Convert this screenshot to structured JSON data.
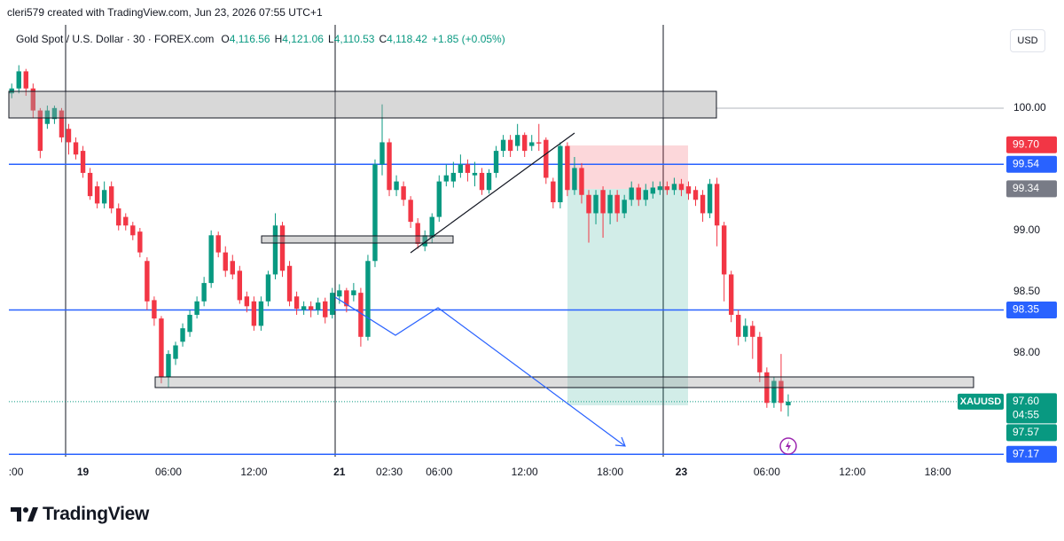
{
  "header": {
    "caption": "cleri579 created with TradingView.com, Jun 23, 2026 07:55 UTC+1"
  },
  "footer": {
    "brand": "TradingView"
  },
  "chart_data": {
    "type": "candlestick",
    "currency": "USD",
    "legend": {
      "name": "Gold Spot / U.S. Dollar · 30 · FOREX.com",
      "ohlc": [
        {
          "key": "O",
          "value": "4,116.56"
        },
        {
          "key": "H",
          "value": "4,121.06"
        },
        {
          "key": "L",
          "value": "4,110.53"
        },
        {
          "key": "C",
          "value": "4,118.42"
        }
      ],
      "change": "+1.85 (+0.05%)"
    },
    "up_color": "#089981",
    "down_color": "#f23645",
    "open": [
      100.12,
      100.16,
      100.3,
      100.16,
      99.98,
      99.87,
      99.91,
      99.98,
      99.83,
      99.72,
      99.65,
      99.47,
      99.36,
      99.22,
      99.36,
      99.18,
      99.11,
      99.04,
      98.99,
      98.75,
      98.43,
      98.28,
      97.8,
      97.95,
      98.09,
      98.17,
      98.31,
      98.42,
      98.57,
      98.96,
      98.82,
      98.75,
      98.67,
      98.46,
      98.42,
      98.22,
      98.42,
      98.64,
      99.04,
      98.71,
      98.46,
      98.35,
      98.38,
      98.35,
      98.42,
      98.31,
      98.46,
      98.51,
      98.47,
      98.49,
      98.13,
      98.75,
      99.54,
      99.72,
      99.33,
      99.36,
      99.25,
      99.06,
      98.87,
      98.94,
      99.11,
      99.4,
      99.4,
      99.47,
      99.54,
      99.45,
      99.47,
      99.33,
      99.47,
      99.65,
      99.74,
      99.69,
      99.78,
      99.69,
      99.72,
      99.74,
      99.4,
      99.23,
      99.69,
      99.33,
      99.51,
      99.29,
      99.14,
      99.33,
      99.14,
      99.29,
      99.14,
      99.25,
      99.35,
      99.25,
      99.3,
      99.33,
      99.36,
      99.33,
      99.38,
      99.36,
      99.33,
      99.29,
      99.14,
      99.38,
      99.04,
      98.64,
      98.31,
      98.13,
      98.22,
      98.13,
      97.84,
      97.59,
      97.77,
      97.57
    ],
    "high": [
      100.2,
      100.35,
      100.32,
      100.2,
      100.0,
      100.02,
      100.02,
      100.0,
      99.87,
      99.76,
      99.69,
      99.51,
      99.4,
      99.4,
      99.4,
      99.22,
      99.14,
      99.07,
      99.02,
      98.78,
      98.46,
      98.3,
      98.02,
      98.09,
      98.24,
      98.35,
      98.46,
      98.62,
      99.0,
      98.99,
      98.87,
      98.8,
      98.71,
      98.5,
      98.46,
      98.46,
      98.67,
      99.14,
      99.07,
      98.75,
      98.5,
      98.42,
      98.42,
      98.45,
      98.45,
      98.53,
      98.56,
      98.53,
      98.57,
      98.53,
      98.8,
      99.58,
      100.03,
      99.75,
      99.45,
      99.4,
      99.28,
      99.1,
      99.0,
      99.14,
      99.45,
      99.54,
      99.56,
      99.62,
      99.58,
      99.56,
      99.51,
      99.5,
      99.69,
      99.78,
      99.78,
      99.87,
      99.8,
      99.78,
      99.87,
      99.76,
      99.43,
      99.72,
      99.72,
      99.6,
      99.55,
      99.33,
      99.33,
      99.36,
      99.33,
      99.33,
      99.29,
      99.4,
      99.38,
      99.38,
      99.4,
      99.4,
      99.4,
      99.43,
      99.42,
      99.4,
      99.36,
      99.33,
      99.42,
      99.43,
      99.07,
      98.67,
      98.35,
      98.28,
      98.26,
      98.17,
      97.88,
      97.8,
      97.99,
      97.66
    ],
    "low": [
      100.08,
      100.12,
      100.1,
      99.92,
      99.59,
      99.83,
      99.87,
      99.72,
      99.62,
      99.58,
      99.43,
      99.25,
      99.18,
      99.18,
      99.14,
      99.0,
      99.0,
      98.92,
      98.78,
      98.35,
      98.22,
      97.75,
      97.72,
      97.9,
      98.05,
      98.13,
      98.28,
      98.38,
      98.53,
      98.78,
      98.62,
      98.6,
      98.4,
      98.33,
      98.18,
      98.18,
      98.38,
      98.6,
      98.62,
      98.38,
      98.31,
      98.31,
      98.29,
      98.31,
      98.24,
      98.28,
      98.4,
      98.33,
      98.42,
      98.05,
      98.1,
      98.7,
      99.45,
      99.28,
      99.28,
      99.2,
      99.02,
      98.85,
      98.83,
      98.9,
      99.07,
      99.36,
      99.35,
      99.43,
      99.4,
      99.36,
      99.29,
      99.3,
      99.43,
      99.6,
      99.6,
      99.65,
      99.6,
      99.65,
      99.65,
      99.38,
      99.18,
      99.18,
      99.28,
      99.29,
      99.22,
      98.9,
      99.05,
      98.94,
      99.05,
      99.07,
      99.1,
      99.2,
      99.2,
      99.2,
      99.26,
      99.29,
      99.29,
      99.29,
      99.28,
      99.25,
      99.2,
      99.07,
      99.1,
      98.87,
      98.42,
      98.25,
      98.06,
      98.09,
      97.95,
      97.76,
      97.55,
      97.55,
      97.52,
      97.48
    ],
    "close": [
      100.16,
      100.3,
      100.16,
      99.98,
      99.65,
      99.98,
      100.0,
      99.76,
      99.72,
      99.62,
      99.47,
      99.28,
      99.22,
      99.33,
      99.18,
      99.04,
      99.04,
      98.96,
      98.82,
      98.42,
      98.28,
      97.8,
      97.99,
      98.06,
      98.2,
      98.31,
      98.42,
      98.57,
      98.96,
      98.82,
      98.67,
      98.64,
      98.43,
      98.38,
      98.22,
      98.42,
      98.64,
      99.04,
      98.67,
      98.42,
      98.36,
      98.38,
      98.35,
      98.41,
      98.29,
      98.49,
      98.51,
      98.38,
      98.51,
      98.13,
      98.75,
      99.54,
      99.72,
      99.33,
      99.4,
      99.25,
      99.07,
      98.89,
      98.96,
      99.11,
      99.4,
      99.45,
      99.47,
      99.54,
      99.47,
      99.47,
      99.33,
      99.47,
      99.65,
      99.74,
      99.65,
      99.78,
      99.65,
      99.72,
      99.71,
      99.43,
      99.23,
      99.69,
      99.33,
      99.51,
      99.29,
      99.14,
      99.29,
      99.14,
      99.29,
      99.14,
      99.25,
      99.35,
      99.25,
      99.33,
      99.35,
      99.36,
      99.33,
      99.38,
      99.33,
      99.3,
      99.25,
      99.14,
      99.38,
      99.04,
      98.64,
      98.31,
      98.13,
      98.22,
      98.13,
      97.84,
      97.59,
      97.77,
      97.59,
      97.6
    ],
    "xlim": [
      -0.4,
      139
    ],
    "xticks": [
      {
        "value": 0.6,
        "label": ":00"
      },
      {
        "value": 10,
        "label": "19"
      },
      {
        "value": 22,
        "label": "06:00"
      },
      {
        "value": 34,
        "label": "12:00"
      },
      {
        "value": 46,
        "label": "21"
      },
      {
        "value": 53,
        "label": "02:30"
      },
      {
        "value": 60,
        "label": "06:00"
      },
      {
        "value": 72,
        "label": "12:00"
      },
      {
        "value": 84,
        "label": "18:00"
      },
      {
        "value": 94,
        "label": "23"
      },
      {
        "value": 106,
        "label": "06:00"
      },
      {
        "value": 118,
        "label": "12:00"
      },
      {
        "value": 130,
        "label": "18:00"
      }
    ],
    "ylim": [
      97.15,
      100.68
    ],
    "yticks": [
      {
        "value": 98,
        "label": "98.00"
      },
      {
        "value": 98.5,
        "label": "98.50"
      },
      {
        "value": 99,
        "label": "99.00"
      },
      {
        "value": 100,
        "label": "100.00"
      }
    ],
    "grid": false,
    "horizontal_lines": [
      {
        "value": 99.54,
        "label": "99.54",
        "color": "#2962ff"
      },
      {
        "value": 98.35,
        "label": "98.35",
        "color": "#2962ff"
      },
      {
        "value": 97.17,
        "label": "97.17",
        "color": "#2962ff"
      }
    ],
    "price_labels": [
      {
        "value": 99.7,
        "label": "99.70",
        "color": "#f23645"
      },
      {
        "value": 99.34,
        "label": "99.34",
        "color": "#787b86"
      },
      {
        "value": 97.57,
        "label": "97.57",
        "color": "#089981"
      }
    ],
    "last_price": {
      "symbol": "XAUUSD",
      "value": 97.6,
      "label": "97.60",
      "countdown": "04:55",
      "color": "#089981"
    }
  }
}
